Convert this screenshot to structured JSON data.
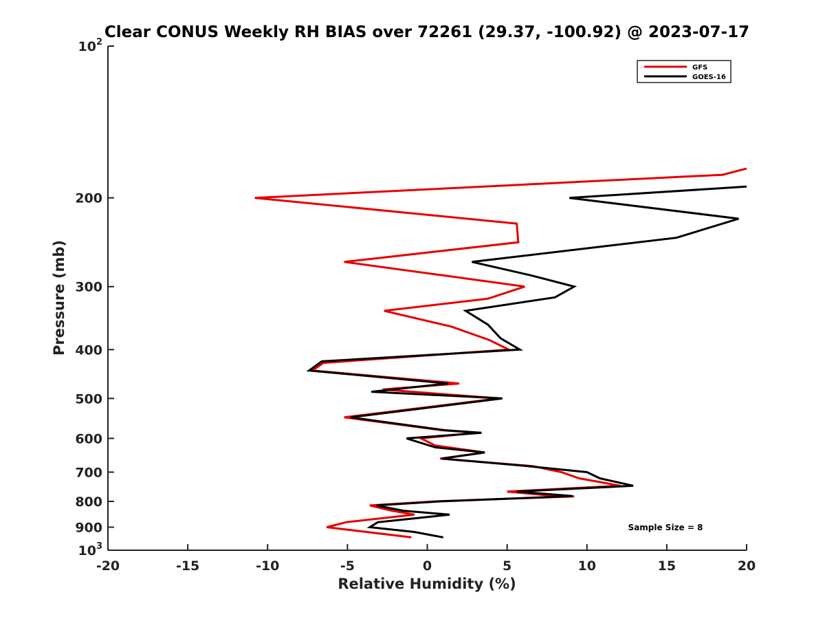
{
  "chart_data": {
    "type": "line",
    "title": "Clear CONUS Weekly RH BIAS over 72261 (29.37, -100.92) @ 2023-07-17",
    "xlabel": "Relative Humidity (%)",
    "ylabel": "Pressure (mb)",
    "xlim": [
      -20,
      20
    ],
    "ylim": [
      1000,
      100
    ],
    "y_scale": "log",
    "y_reversed": true,
    "x_ticks": [
      -20,
      -15,
      -10,
      -5,
      0,
      5,
      10,
      15,
      20
    ],
    "x_tick_labels": [
      "-20",
      "-15",
      "-10",
      "-5",
      "0",
      "5",
      "10",
      "15",
      "20"
    ],
    "y_ticks": [
      100,
      200,
      300,
      400,
      500,
      600,
      700,
      800,
      900,
      1000
    ],
    "y_tick_labels": [
      {
        "base": "10",
        "exp": "2"
      },
      {
        "base": "200",
        "exp": ""
      },
      {
        "base": "300",
        "exp": ""
      },
      {
        "base": "400",
        "exp": ""
      },
      {
        "base": "500",
        "exp": ""
      },
      {
        "base": "600",
        "exp": ""
      },
      {
        "base": "700",
        "exp": ""
      },
      {
        "base": "800",
        "exp": ""
      },
      {
        "base": "900",
        "exp": ""
      },
      {
        "base": "10",
        "exp": "3"
      }
    ],
    "grid": false,
    "legend_position": "top-right",
    "annotation": "Sample Size = 8",
    "series": [
      {
        "name": "GFS",
        "color": "#e60000",
        "points": [
          [
            20.0,
            175
          ],
          [
            18.5,
            180
          ],
          [
            -10.8,
            200
          ],
          [
            5.6,
            225
          ],
          [
            5.7,
            245
          ],
          [
            -5.2,
            268
          ],
          [
            1.0,
            285
          ],
          [
            6.1,
            300
          ],
          [
            3.8,
            317
          ],
          [
            -2.7,
            335
          ],
          [
            1.5,
            360
          ],
          [
            3.9,
            383
          ],
          [
            5.1,
            400
          ],
          [
            -6.5,
            425
          ],
          [
            -7.2,
            440
          ],
          [
            2.0,
            467
          ],
          [
            -2.8,
            480
          ],
          [
            4.5,
            500
          ],
          [
            -5.2,
            545
          ],
          [
            0.9,
            578
          ],
          [
            3.1,
            585
          ],
          [
            -0.4,
            600
          ],
          [
            0.5,
            620
          ],
          [
            3.6,
            640
          ],
          [
            0.8,
            658
          ],
          [
            6.6,
            681
          ],
          [
            8.4,
            700
          ],
          [
            9.5,
            720
          ],
          [
            12.1,
            745
          ],
          [
            5.0,
            765
          ],
          [
            7.7,
            779
          ],
          [
            9.2,
            782
          ],
          [
            0.5,
            800
          ],
          [
            -3.6,
            815
          ],
          [
            -2.2,
            835
          ],
          [
            -0.8,
            850
          ],
          [
            -5.1,
            880
          ],
          [
            -6.3,
            900
          ],
          [
            -1.0,
            943
          ]
        ]
      },
      {
        "name": "GOES-16",
        "color": "#000000",
        "points": [
          [
            20.0,
            190
          ],
          [
            8.9,
            200
          ],
          [
            19.5,
            220
          ],
          [
            15.6,
            240
          ],
          [
            2.8,
            268
          ],
          [
            6.5,
            285
          ],
          [
            9.2,
            300
          ],
          [
            8.0,
            315
          ],
          [
            2.4,
            335
          ],
          [
            3.8,
            357
          ],
          [
            4.6,
            380
          ],
          [
            5.8,
            400
          ],
          [
            -6.6,
            422
          ],
          [
            -7.4,
            440
          ],
          [
            1.3,
            467
          ],
          [
            -3.5,
            485
          ],
          [
            4.7,
            500
          ],
          [
            -4.8,
            545
          ],
          [
            1.1,
            578
          ],
          [
            3.4,
            585
          ],
          [
            -1.3,
            600
          ],
          [
            0.5,
            625
          ],
          [
            3.6,
            640
          ],
          [
            0.9,
            658
          ],
          [
            6.3,
            681
          ],
          [
            10.0,
            700
          ],
          [
            10.8,
            720
          ],
          [
            12.9,
            745
          ],
          [
            5.6,
            765
          ],
          [
            9.1,
            781
          ],
          [
            0.8,
            800
          ],
          [
            -3.2,
            815
          ],
          [
            -1.5,
            835
          ],
          [
            1.4,
            850
          ],
          [
            -3.1,
            880
          ],
          [
            -3.6,
            900
          ],
          [
            -0.8,
            920
          ],
          [
            1.0,
            943
          ]
        ]
      }
    ]
  }
}
